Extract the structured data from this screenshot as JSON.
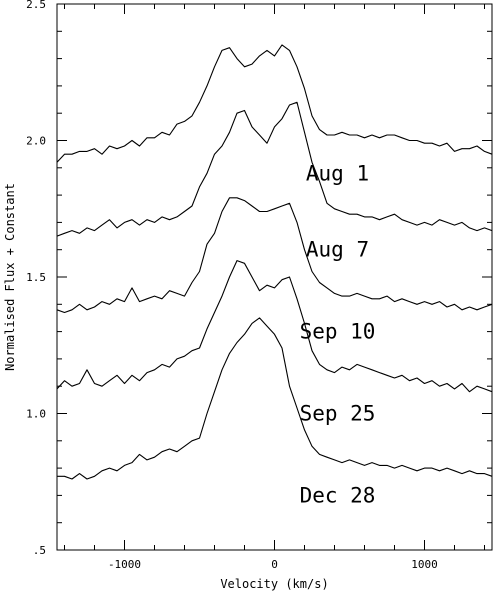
{
  "chart_data": {
    "type": "line",
    "xlabel": "Velocity (km/s)",
    "ylabel": "Normalised Flux + Constant",
    "xlim": [
      -1450,
      1450
    ],
    "ylim": [
      0.5,
      2.5
    ],
    "xticks_major": [
      -1000,
      0,
      1000
    ],
    "xtick_labels": [
      "-1000",
      "0",
      "1000"
    ],
    "xticks_minor_step": 200,
    "yticks_major": [
      0.5,
      1.0,
      1.5,
      2.0,
      2.5
    ],
    "ytick_labels": [
      ".5",
      "1.0",
      "1.5",
      "2.0",
      "2.5"
    ],
    "yticks_minor_step": 0.1,
    "grid": false,
    "legend": "none",
    "line_color": "#000000",
    "series": [
      {
        "name": "Aug 1",
        "label_position": {
          "x": 420,
          "y": 1.88
        },
        "x": [
          -1450,
          -1400,
          -1350,
          -1300,
          -1250,
          -1200,
          -1150,
          -1100,
          -1050,
          -1000,
          -950,
          -900,
          -850,
          -800,
          -750,
          -700,
          -650,
          -600,
          -550,
          -500,
          -450,
          -400,
          -350,
          -300,
          -250,
          -200,
          -150,
          -100,
          -50,
          0,
          50,
          100,
          150,
          200,
          250,
          300,
          350,
          400,
          450,
          500,
          550,
          600,
          650,
          700,
          750,
          800,
          850,
          900,
          950,
          1000,
          1050,
          1100,
          1150,
          1200,
          1250,
          1300,
          1350,
          1400,
          1450
        ],
        "y": [
          1.92,
          1.95,
          1.95,
          1.96,
          1.96,
          1.97,
          1.95,
          1.98,
          1.97,
          1.98,
          2.0,
          1.98,
          2.01,
          2.01,
          2.03,
          2.02,
          2.06,
          2.07,
          2.09,
          2.14,
          2.2,
          2.27,
          2.33,
          2.34,
          2.3,
          2.27,
          2.28,
          2.31,
          2.33,
          2.31,
          2.35,
          2.33,
          2.27,
          2.19,
          2.09,
          2.04,
          2.02,
          2.02,
          2.03,
          2.02,
          2.02,
          2.01,
          2.02,
          2.01,
          2.02,
          2.02,
          2.01,
          2.0,
          2.0,
          1.99,
          1.99,
          1.98,
          1.99,
          1.96,
          1.97,
          1.97,
          1.98,
          1.96,
          1.95
        ]
      },
      {
        "name": "Aug 7",
        "label_position": {
          "x": 420,
          "y": 1.6
        },
        "x": [
          -1450,
          -1400,
          -1350,
          -1300,
          -1250,
          -1200,
          -1150,
          -1100,
          -1050,
          -1000,
          -950,
          -900,
          -850,
          -800,
          -750,
          -700,
          -650,
          -600,
          -550,
          -500,
          -450,
          -400,
          -350,
          -300,
          -250,
          -200,
          -150,
          -100,
          -50,
          0,
          50,
          100,
          150,
          200,
          250,
          300,
          350,
          400,
          450,
          500,
          550,
          600,
          650,
          700,
          750,
          800,
          850,
          900,
          950,
          1000,
          1050,
          1100,
          1150,
          1200,
          1250,
          1300,
          1350,
          1400,
          1450
        ],
        "y": [
          1.65,
          1.66,
          1.67,
          1.66,
          1.68,
          1.67,
          1.69,
          1.71,
          1.68,
          1.7,
          1.71,
          1.69,
          1.71,
          1.7,
          1.72,
          1.71,
          1.72,
          1.74,
          1.76,
          1.83,
          1.88,
          1.95,
          1.98,
          2.03,
          2.1,
          2.11,
          2.05,
          2.02,
          1.99,
          2.05,
          2.08,
          2.13,
          2.14,
          2.03,
          1.92,
          1.85,
          1.77,
          1.75,
          1.74,
          1.73,
          1.73,
          1.72,
          1.72,
          1.71,
          1.72,
          1.73,
          1.71,
          1.7,
          1.69,
          1.7,
          1.69,
          1.71,
          1.7,
          1.69,
          1.7,
          1.68,
          1.67,
          1.68,
          1.67
        ]
      },
      {
        "name": "Sep 10",
        "label_position": {
          "x": 420,
          "y": 1.3
        },
        "x": [
          -1450,
          -1400,
          -1350,
          -1300,
          -1250,
          -1200,
          -1150,
          -1100,
          -1050,
          -1000,
          -950,
          -900,
          -850,
          -800,
          -750,
          -700,
          -650,
          -600,
          -550,
          -500,
          -450,
          -400,
          -350,
          -300,
          -250,
          -200,
          -150,
          -100,
          -50,
          0,
          50,
          100,
          150,
          200,
          250,
          300,
          350,
          400,
          450,
          500,
          550,
          600,
          650,
          700,
          750,
          800,
          850,
          900,
          950,
          1000,
          1050,
          1100,
          1150,
          1200,
          1250,
          1300,
          1350,
          1400,
          1450
        ],
        "y": [
          1.38,
          1.37,
          1.38,
          1.4,
          1.38,
          1.39,
          1.41,
          1.4,
          1.42,
          1.41,
          1.46,
          1.41,
          1.42,
          1.43,
          1.42,
          1.45,
          1.44,
          1.43,
          1.48,
          1.52,
          1.62,
          1.66,
          1.74,
          1.79,
          1.79,
          1.78,
          1.76,
          1.74,
          1.74,
          1.75,
          1.76,
          1.77,
          1.7,
          1.6,
          1.52,
          1.48,
          1.46,
          1.44,
          1.43,
          1.43,
          1.44,
          1.43,
          1.42,
          1.42,
          1.43,
          1.41,
          1.42,
          1.41,
          1.4,
          1.41,
          1.4,
          1.41,
          1.39,
          1.4,
          1.38,
          1.39,
          1.38,
          1.39,
          1.4
        ]
      },
      {
        "name": "Sep 25",
        "label_position": {
          "x": 420,
          "y": 1.0
        },
        "x": [
          -1450,
          -1400,
          -1350,
          -1300,
          -1250,
          -1200,
          -1150,
          -1100,
          -1050,
          -1000,
          -950,
          -900,
          -850,
          -800,
          -750,
          -700,
          -650,
          -600,
          -550,
          -500,
          -450,
          -400,
          -350,
          -300,
          -250,
          -200,
          -150,
          -100,
          -50,
          0,
          50,
          100,
          150,
          200,
          250,
          300,
          350,
          400,
          450,
          500,
          550,
          600,
          650,
          700,
          750,
          800,
          850,
          900,
          950,
          1000,
          1050,
          1100,
          1150,
          1200,
          1250,
          1300,
          1350,
          1400,
          1450
        ],
        "y": [
          1.09,
          1.12,
          1.1,
          1.11,
          1.16,
          1.11,
          1.1,
          1.12,
          1.14,
          1.11,
          1.14,
          1.12,
          1.15,
          1.16,
          1.18,
          1.17,
          1.2,
          1.21,
          1.23,
          1.24,
          1.31,
          1.37,
          1.43,
          1.5,
          1.56,
          1.55,
          1.5,
          1.45,
          1.47,
          1.46,
          1.49,
          1.5,
          1.42,
          1.33,
          1.23,
          1.18,
          1.16,
          1.15,
          1.17,
          1.16,
          1.18,
          1.17,
          1.16,
          1.15,
          1.14,
          1.13,
          1.14,
          1.12,
          1.13,
          1.11,
          1.12,
          1.1,
          1.11,
          1.09,
          1.11,
          1.08,
          1.1,
          1.09,
          1.08
        ]
      },
      {
        "name": "Dec 28",
        "label_position": {
          "x": 420,
          "y": 0.7
        },
        "x": [
          -1450,
          -1400,
          -1350,
          -1300,
          -1250,
          -1200,
          -1150,
          -1100,
          -1050,
          -1000,
          -950,
          -900,
          -850,
          -800,
          -750,
          -700,
          -650,
          -600,
          -550,
          -500,
          -450,
          -400,
          -350,
          -300,
          -250,
          -200,
          -150,
          -100,
          -50,
          0,
          50,
          100,
          150,
          200,
          250,
          300,
          350,
          400,
          450,
          500,
          550,
          600,
          650,
          700,
          750,
          800,
          850,
          900,
          950,
          1000,
          1050,
          1100,
          1150,
          1200,
          1250,
          1300,
          1350,
          1400,
          1450
        ],
        "y": [
          0.77,
          0.77,
          0.76,
          0.78,
          0.76,
          0.77,
          0.79,
          0.8,
          0.79,
          0.81,
          0.82,
          0.85,
          0.83,
          0.84,
          0.86,
          0.87,
          0.86,
          0.88,
          0.9,
          0.91,
          1.0,
          1.08,
          1.16,
          1.22,
          1.26,
          1.29,
          1.33,
          1.35,
          1.32,
          1.29,
          1.24,
          1.1,
          1.02,
          0.94,
          0.88,
          0.85,
          0.84,
          0.83,
          0.82,
          0.83,
          0.82,
          0.81,
          0.82,
          0.81,
          0.81,
          0.8,
          0.81,
          0.8,
          0.79,
          0.8,
          0.8,
          0.79,
          0.8,
          0.79,
          0.78,
          0.79,
          0.78,
          0.78,
          0.77
        ]
      }
    ]
  }
}
